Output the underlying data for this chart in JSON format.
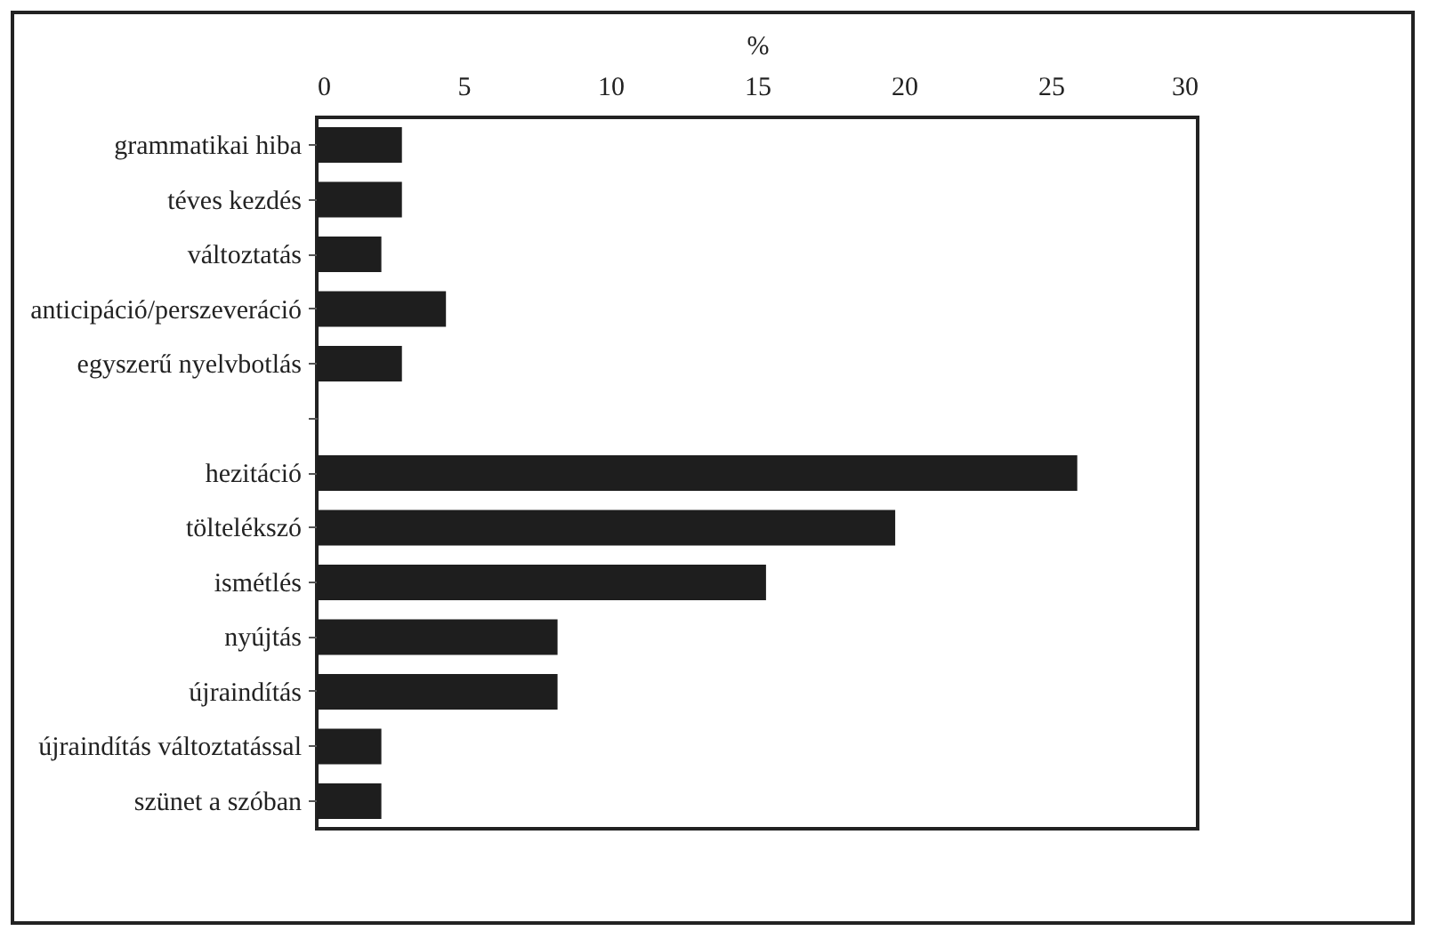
{
  "chart_data": {
    "type": "bar",
    "orientation": "horizontal",
    "xlabel": "%",
    "categories": [
      "grammatikai hiba",
      "téves kezdés",
      "változtatás",
      "anticipáció/perszeveráció",
      "egyszerű nyelvbotlás",
      null,
      "hezitáció",
      "töltelékszó",
      "ismétlés",
      "nyújtás",
      "újraindítás",
      "újraindítás változtatással",
      "szünet a szóban"
    ],
    "values": [
      2.9,
      2.9,
      2.2,
      4.4,
      2.9,
      null,
      25.9,
      19.7,
      15.3,
      8.2,
      8.2,
      2.2,
      2.2
    ],
    "color": "#1e1e1e",
    "xlim": [
      0,
      30
    ],
    "xticks": [
      0,
      5,
      10,
      15,
      20,
      25,
      30
    ],
    "grid": false
  }
}
